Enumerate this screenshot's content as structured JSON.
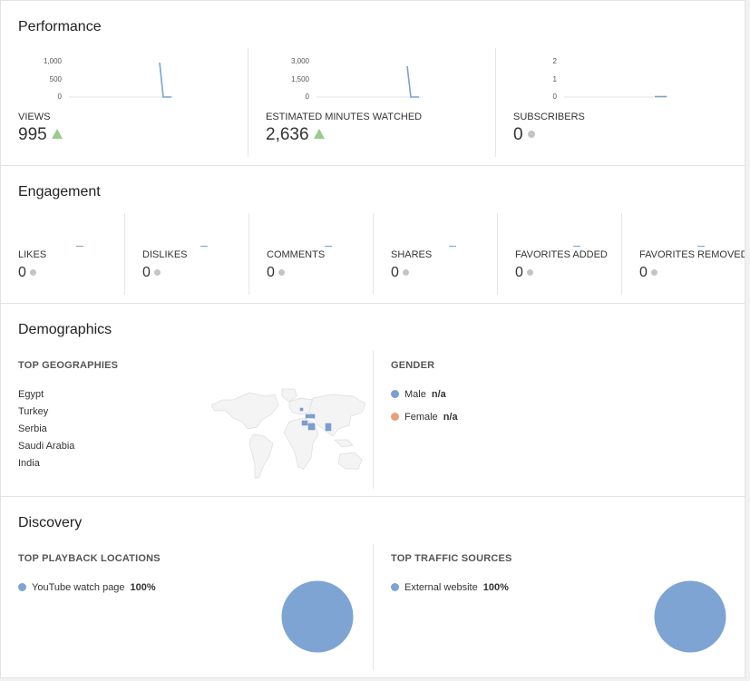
{
  "performance": {
    "title": "Performance",
    "metrics": [
      {
        "label": "VIEWS",
        "value": "995",
        "trend": "up",
        "ticks": [
          "1,000",
          "500",
          "0"
        ]
      },
      {
        "label": "ESTIMATED MINUTES WATCHED",
        "value": "2,636",
        "trend": "up",
        "ticks": [
          "3,000",
          "1,500",
          "0"
        ]
      },
      {
        "label": "SUBSCRIBERS",
        "value": "0",
        "trend": "neutral",
        "ticks": [
          "2",
          "1",
          "0"
        ]
      }
    ]
  },
  "engagement": {
    "title": "Engagement",
    "metrics": [
      {
        "label": "LIKES",
        "value": "0"
      },
      {
        "label": "DISLIKES",
        "value": "0"
      },
      {
        "label": "COMMENTS",
        "value": "0"
      },
      {
        "label": "SHARES",
        "value": "0"
      },
      {
        "label": "FAVORITES ADDED",
        "value": "0"
      },
      {
        "label": "FAVORITES REMOVED",
        "value": "0"
      }
    ]
  },
  "demographics": {
    "title": "Demographics",
    "geo_header": "TOP GEOGRAPHIES",
    "geographies": [
      "Egypt",
      "Turkey",
      "Serbia",
      "Saudi Arabia",
      "India"
    ],
    "gender_header": "GENDER",
    "gender": [
      {
        "label": "Male",
        "value": "n/a",
        "color": "#7b9fd0"
      },
      {
        "label": "Female",
        "value": "n/a",
        "color": "#e8a07a"
      }
    ]
  },
  "discovery": {
    "title": "Discovery",
    "playback_header": "TOP PLAYBACK LOCATIONS",
    "playback": [
      {
        "label": "YouTube watch page",
        "value": "100%",
        "color": "#7ea4d4"
      }
    ],
    "traffic_header": "TOP TRAFFIC SOURCES",
    "traffic": [
      {
        "label": "External website",
        "value": "100%",
        "color": "#7ea4d4"
      }
    ]
  },
  "colors": {
    "line": "#7aa3cf",
    "up": "#9bca8e",
    "neutral": "#c4c4c4",
    "pie": "#7ea4d4"
  }
}
